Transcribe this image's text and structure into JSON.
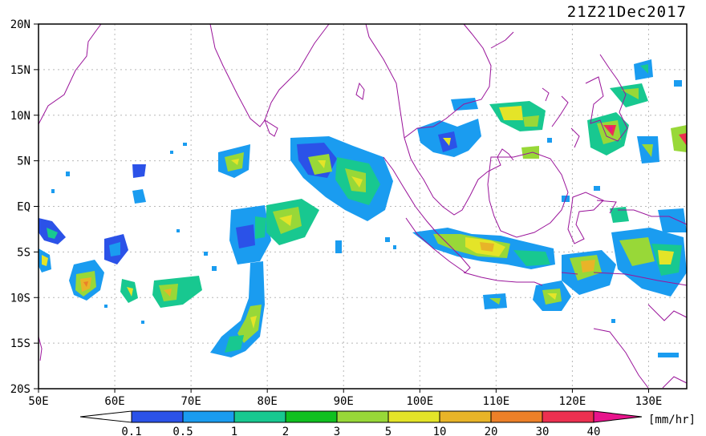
{
  "title": "21Z21Dec2017",
  "lat_labels": [
    "20N",
    "15N",
    "10N",
    "5N",
    "EQ",
    "5S",
    "10S",
    "15S",
    "20S"
  ],
  "lon_labels": [
    "50E",
    "60E",
    "70E",
    "80E",
    "90E",
    "100E",
    "110E",
    "120E",
    "130E"
  ],
  "colorbar": {
    "unit": "[mm/hr]",
    "ticks": [
      "0.1",
      "0.5",
      "1",
      "2",
      "3",
      "5",
      "10",
      "20",
      "30",
      "40"
    ],
    "colors": [
      "#2b52e8",
      "#1a9cf0",
      "#18c890",
      "#10c020",
      "#98d838",
      "#e4e428",
      "#e8b428",
      "#ec8028",
      "#ec3050",
      "#e8148c"
    ]
  },
  "map_colors": {
    "coast": "#9a149a",
    "grid": "#b8b8b8",
    "frame": "#000000"
  }
}
